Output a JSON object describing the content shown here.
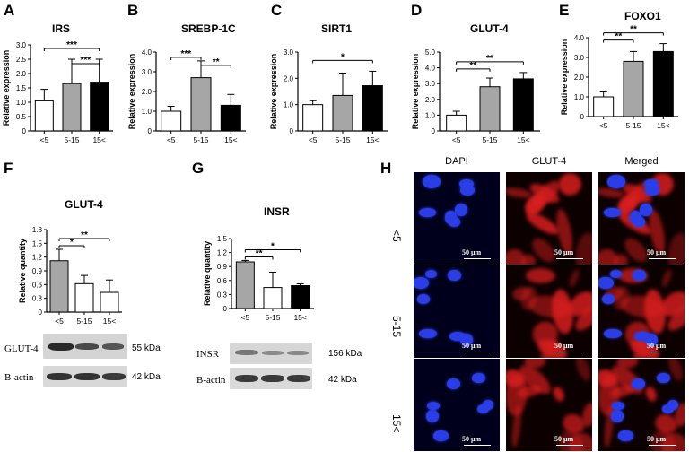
{
  "panels": {
    "A": "A",
    "B": "B",
    "C": "C",
    "D": "D",
    "E": "E",
    "F": "F",
    "G": "G",
    "H": "H"
  },
  "chart_data": [
    {
      "id": "A",
      "type": "bar",
      "title": "IRS",
      "ylabel": "Relative expression",
      "categories": [
        "<5",
        "5-15",
        "15<"
      ],
      "values": [
        1.05,
        1.65,
        1.7
      ],
      "errors": [
        0.4,
        0.85,
        0.8
      ],
      "fills": [
        "#ffffff",
        "#a6a6a6",
        "#000000"
      ],
      "ylim": [
        0,
        3
      ],
      "yticks": [
        "0",
        "0.5",
        "1.0",
        "1.5",
        "2.0",
        "2.5",
        "3.0"
      ],
      "significance": [
        {
          "from": 0,
          "to": 2,
          "label": "***"
        },
        {
          "from": 1,
          "to": 2,
          "label": "***"
        }
      ]
    },
    {
      "id": "B",
      "type": "bar",
      "title": "SREBP-1C",
      "ylabel": "Relative expression",
      "categories": [
        "<5",
        "5-15",
        "15<"
      ],
      "values": [
        1.0,
        2.7,
        1.3
      ],
      "errors": [
        0.25,
        0.85,
        0.55
      ],
      "fills": [
        "#ffffff",
        "#a6a6a6",
        "#000000"
      ],
      "ylim": [
        0,
        4
      ],
      "yticks": [
        "0",
        "1.0",
        "2.0",
        "3.0",
        "4.0"
      ],
      "significance": [
        {
          "from": 0,
          "to": 1,
          "label": "***"
        },
        {
          "from": 1,
          "to": 2,
          "label": "**"
        }
      ]
    },
    {
      "id": "C",
      "type": "bar",
      "title": "SIRT1",
      "ylabel": "Relative expression",
      "categories": [
        "<5",
        "5-15",
        "15<"
      ],
      "values": [
        1.0,
        1.35,
        1.72
      ],
      "errors": [
        0.15,
        0.85,
        0.55
      ],
      "fills": [
        "#ffffff",
        "#a6a6a6",
        "#000000"
      ],
      "ylim": [
        0,
        3
      ],
      "yticks": [
        "0",
        "1.0",
        "2.0",
        "3.0"
      ],
      "significance": [
        {
          "from": 0,
          "to": 2,
          "label": "*"
        }
      ]
    },
    {
      "id": "D",
      "type": "bar",
      "title": "GLUT-4",
      "ylabel": "Relative expression",
      "categories": [
        "<5",
        "5-15",
        "15<"
      ],
      "values": [
        1.0,
        2.8,
        3.3
      ],
      "errors": [
        0.25,
        0.55,
        0.4
      ],
      "fills": [
        "#ffffff",
        "#a6a6a6",
        "#000000"
      ],
      "ylim": [
        0,
        5
      ],
      "yticks": [
        "0",
        "1.0",
        "2.0",
        "3.0",
        "4.0",
        "5.0"
      ],
      "significance": [
        {
          "from": 0,
          "to": 1,
          "label": "**"
        },
        {
          "from": 0,
          "to": 2,
          "label": "**"
        }
      ]
    },
    {
      "id": "E",
      "type": "bar",
      "title": "FOXO1",
      "ylabel": "Relative expression",
      "categories": [
        "<5",
        "5-15",
        "15<"
      ],
      "values": [
        1.0,
        2.8,
        3.3
      ],
      "errors": [
        0.25,
        0.5,
        0.4
      ],
      "fills": [
        "#ffffff",
        "#a6a6a6",
        "#000000"
      ],
      "ylim": [
        0,
        4
      ],
      "yticks": [
        "0",
        "1.0",
        "2.0",
        "3.0",
        "4.0"
      ],
      "significance": [
        {
          "from": 0,
          "to": 1,
          "label": "**"
        },
        {
          "from": 0,
          "to": 2,
          "label": "**"
        }
      ]
    },
    {
      "id": "F",
      "type": "bar",
      "title": "GLUT-4",
      "ylabel": "Relative quantity",
      "categories": [
        "<5",
        "5-15",
        "15<"
      ],
      "values": [
        1.12,
        0.62,
        0.43
      ],
      "errors": [
        0.25,
        0.18,
        0.27
      ],
      "fills": [
        "#a6a6a6",
        "#ffffff",
        "#ffffff"
      ],
      "ylim": [
        0,
        1.8
      ],
      "yticks": [
        "0",
        "0.3",
        "0.6",
        "0.9",
        "1.2",
        "1.5",
        "1.8"
      ],
      "significance": [
        {
          "from": 0,
          "to": 1,
          "label": "*"
        },
        {
          "from": 0,
          "to": 2,
          "label": "**"
        }
      ]
    },
    {
      "id": "G",
      "type": "bar",
      "title": "INSR",
      "ylabel": "Relative quantity",
      "categories": [
        "<5",
        "5-15",
        "15<"
      ],
      "values": [
        1.0,
        0.45,
        0.49
      ],
      "errors": [
        0.03,
        0.33,
        0.04
      ],
      "fills": [
        "#a6a6a6",
        "#ffffff",
        "#000000"
      ],
      "ylim": [
        0,
        1.5
      ],
      "yticks": [
        "0",
        "0.3",
        "0.6",
        "0.9",
        "1.2",
        "1.5"
      ],
      "significance": [
        {
          "from": 0,
          "to": 1,
          "label": "**"
        },
        {
          "from": 0,
          "to": 2,
          "label": "*"
        }
      ]
    }
  ],
  "blots": {
    "F": {
      "top_label": "GLUT-4",
      "top_kda": "55  kDa",
      "bottom_label": "B-actin",
      "bottom_kda": "42 kDa"
    },
    "G": {
      "top_label": "INSR",
      "top_kda": "156 kDa",
      "bottom_label": "B-actin",
      "bottom_kda": "42 kDa"
    }
  },
  "microscopy": {
    "columns": [
      "DAPI",
      "GLUT-4",
      "Merged"
    ],
    "rows": [
      "<5",
      "5-15",
      "15<"
    ],
    "scale_bar": "50 μm"
  }
}
